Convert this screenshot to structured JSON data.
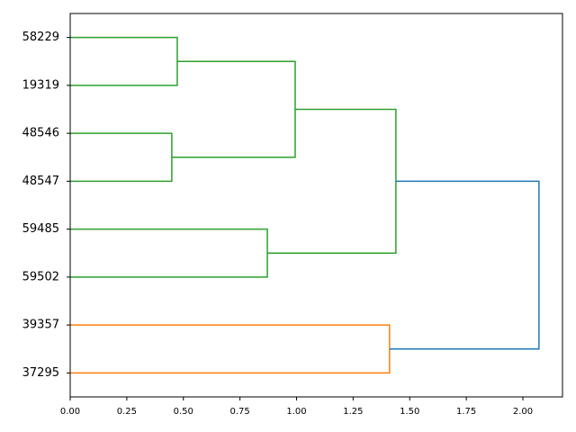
{
  "chart_data": {
    "type": "dendrogram",
    "orientation": "left",
    "categories": [
      "58229",
      "19319",
      "48546",
      "48547",
      "59485",
      "59502",
      "39357",
      "37295"
    ],
    "links": [
      {
        "children": [
          0,
          1
        ],
        "height": 0.473,
        "color": "#2ca02c"
      },
      {
        "children": [
          2,
          3
        ],
        "height": 0.449,
        "color": "#2ca02c"
      },
      {
        "children": [
          8,
          9
        ],
        "height": 0.994,
        "color": "#2ca02c"
      },
      {
        "children": [
          4,
          5
        ],
        "height": 0.871,
        "color": "#2ca02c"
      },
      {
        "children": [
          10,
          11
        ],
        "height": 1.439,
        "color": "#2ca02c"
      },
      {
        "children": [
          6,
          7
        ],
        "height": 1.411,
        "color": "#ff7f0e"
      },
      {
        "children": [
          12,
          13
        ],
        "height": 2.071,
        "color": "#1f77b4"
      }
    ],
    "xlim": [
      0,
      2.175
    ],
    "xticks": [
      {
        "value": 0,
        "label": "0.00"
      },
      {
        "value": 0.25,
        "label": "0.25"
      },
      {
        "value": 0.5,
        "label": "0.50"
      },
      {
        "value": 0.75,
        "label": "0.75"
      },
      {
        "value": 1,
        "label": "1.00"
      },
      {
        "value": 1.25,
        "label": "1.25"
      },
      {
        "value": 1.5,
        "label": "1.50"
      },
      {
        "value": 1.75,
        "label": "1.75"
      },
      {
        "value": 2,
        "label": "2.00"
      }
    ]
  }
}
